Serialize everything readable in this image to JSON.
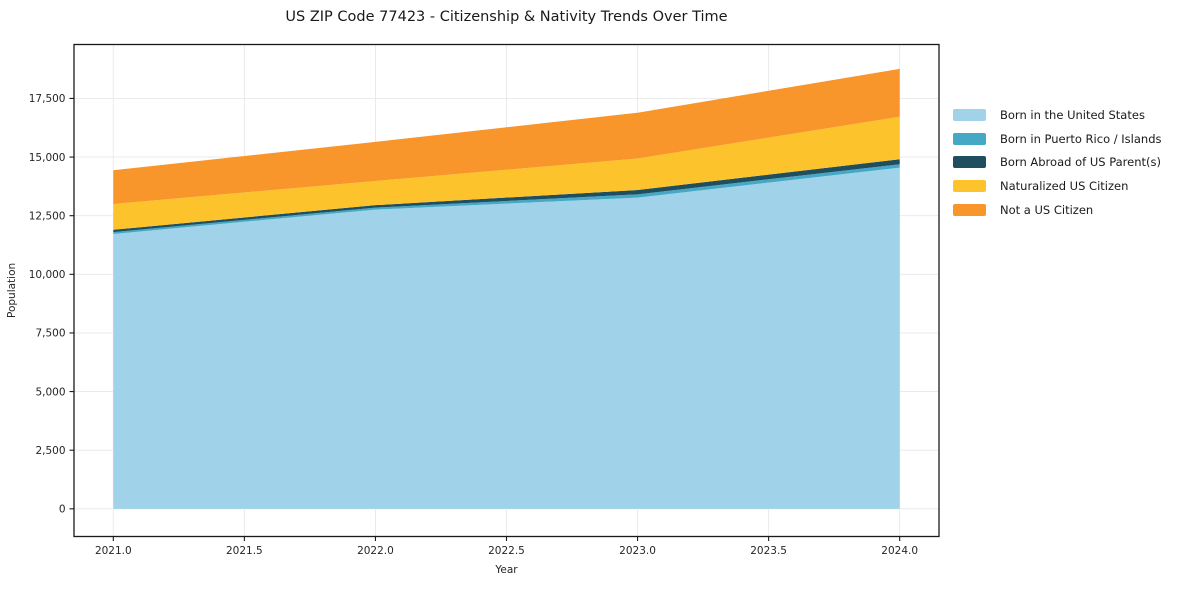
{
  "figure": {
    "title": "US ZIP Code 77423 - Citizenship & Nativity Trends Over Time"
  },
  "axes": {
    "xlabel": "Year",
    "ylabel": "Population"
  },
  "chart_data": {
    "type": "area",
    "stacked": true,
    "title": "US ZIP Code 77423 - Citizenship & Nativity Trends Over Time",
    "xlabel": "Year",
    "ylabel": "Population",
    "x": [
      2021,
      2022,
      2023,
      2024
    ],
    "series": [
      {
        "name": "Born in the United States",
        "color": "#a0d2e9",
        "values": [
          11720,
          12760,
          13270,
          14550
        ]
      },
      {
        "name": "Born in Puerto Rico / Islands",
        "color": "#45a9c6",
        "values": [
          80,
          85,
          140,
          145
        ]
      },
      {
        "name": "Born Abroad of US Parent(s)",
        "color": "#1f4e5f",
        "values": [
          100,
          105,
          185,
          210
        ]
      },
      {
        "name": "Naturalized US Citizen",
        "color": "#fcc32d",
        "values": [
          1100,
          1030,
          1345,
          1815
        ]
      },
      {
        "name": "Not a US Citizen",
        "color": "#f8952b",
        "values": [
          1440,
          1670,
          1950,
          2040
        ]
      }
    ],
    "stack_totals": [
      14440,
      15650,
      16890,
      18760
    ],
    "xlim": [
      2020.85,
      2024.15
    ],
    "ylim": [
      -1180,
      19800
    ],
    "xticks": [
      2021.0,
      2021.5,
      2022.0,
      2022.5,
      2023.0,
      2023.5,
      2024.0
    ],
    "xtick_labels": [
      "2021.0",
      "2021.5",
      "2022.0",
      "2022.5",
      "2023.0",
      "2023.5",
      "2024.0"
    ],
    "yticks": [
      0,
      2500,
      5000,
      7500,
      10000,
      12500,
      15000,
      17500
    ],
    "ytick_labels": [
      "0",
      "2,500",
      "5,000",
      "7,500",
      "10,000",
      "12,500",
      "15,000",
      "17,500"
    ],
    "grid": true,
    "grid_color": "#e8e8e8",
    "spine_color": "#1a1a1a",
    "legend_position": "right"
  }
}
